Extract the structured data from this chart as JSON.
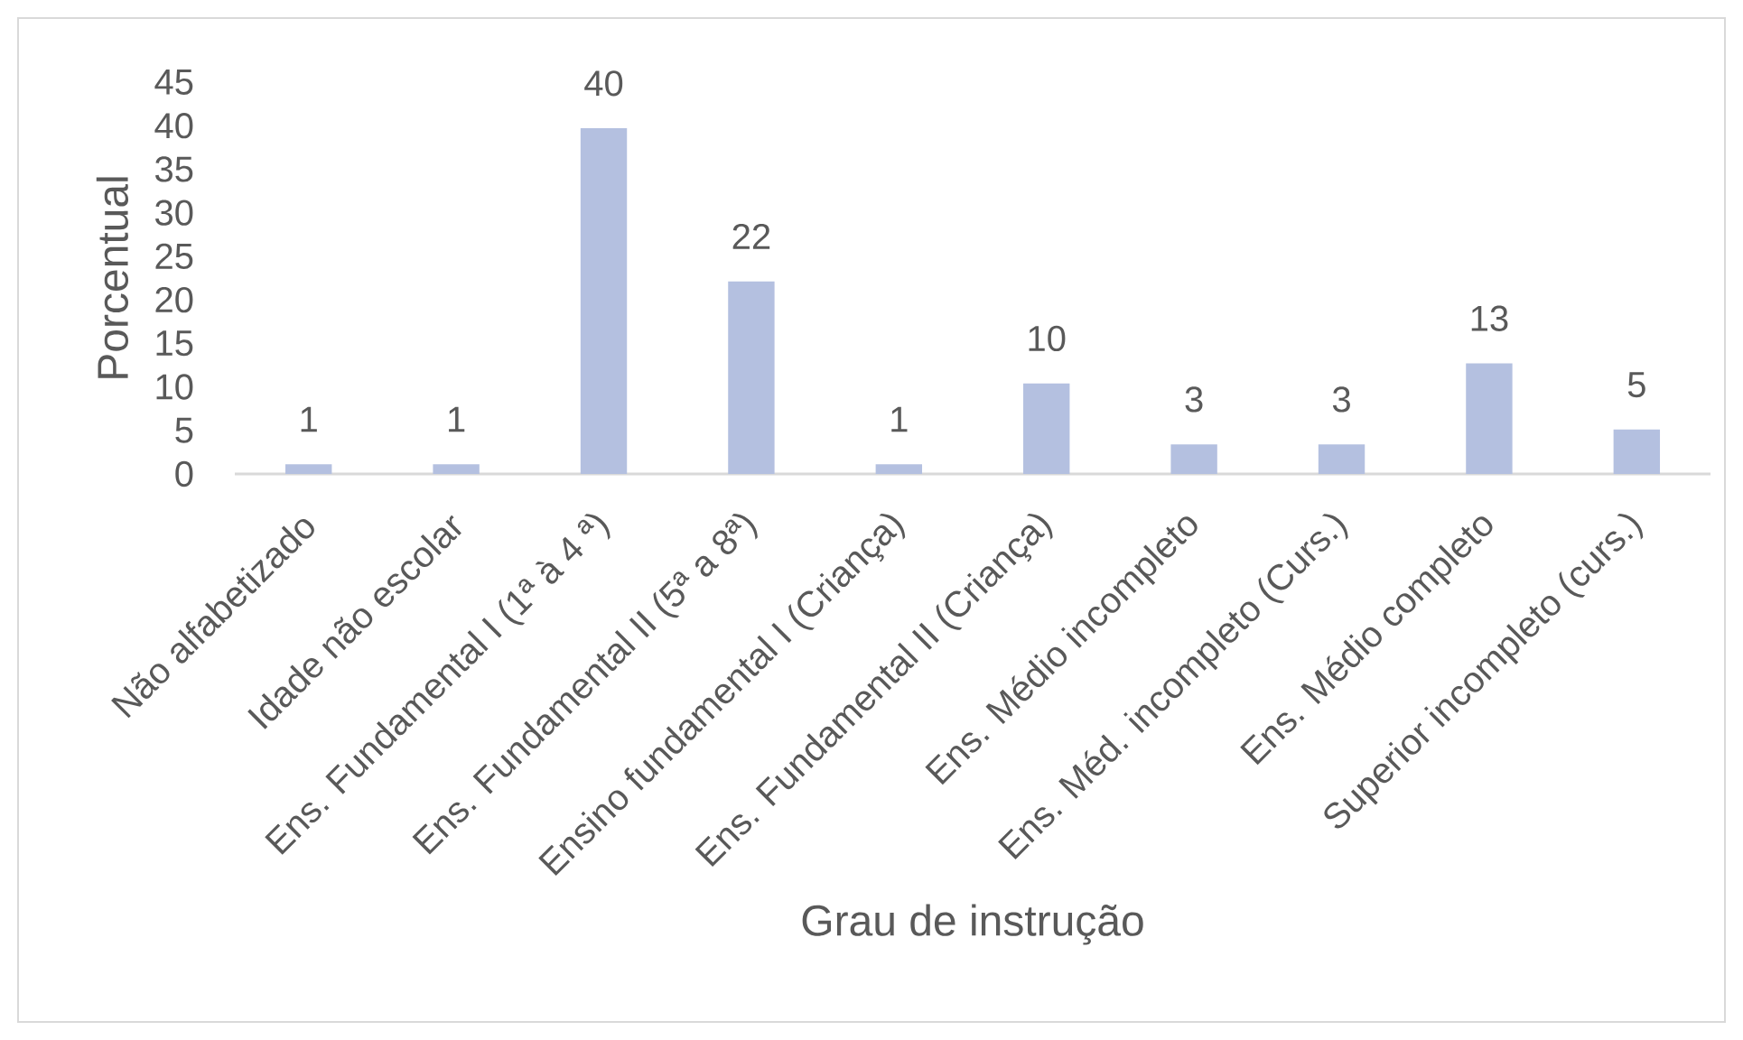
{
  "chart_data": {
    "type": "bar",
    "xlabel": "Grau de instrução",
    "ylabel": "Porcentual",
    "categories": [
      "Não alfabetizado",
      "Idade não escolar",
      "Ens. Fundamental I (1ª à 4 ª)",
      "Ens. Fundamental II (5ª a 8ª)",
      "Ensino fundamental I (Criança)",
      "Ens. Fundamental II (Criança)",
      "Ens. Médio incompleto",
      "Ens. Méd. incompleto (Curs.)",
      "Ens. Médio completo",
      "Superior incompleto (curs.)"
    ],
    "values": [
      1.1,
      1.1,
      39.7,
      22.1,
      1.1,
      10.4,
      3.4,
      3.4,
      12.7,
      5.1
    ],
    "value_labels": [
      "1",
      "1",
      "40",
      "22",
      "1",
      "10",
      "3",
      "3",
      "13",
      "5"
    ],
    "color": "#b4c0e0",
    "ylim": [
      0,
      45
    ],
    "yticks": [
      0,
      5,
      10,
      15,
      20,
      25,
      30,
      35,
      40,
      45
    ]
  }
}
